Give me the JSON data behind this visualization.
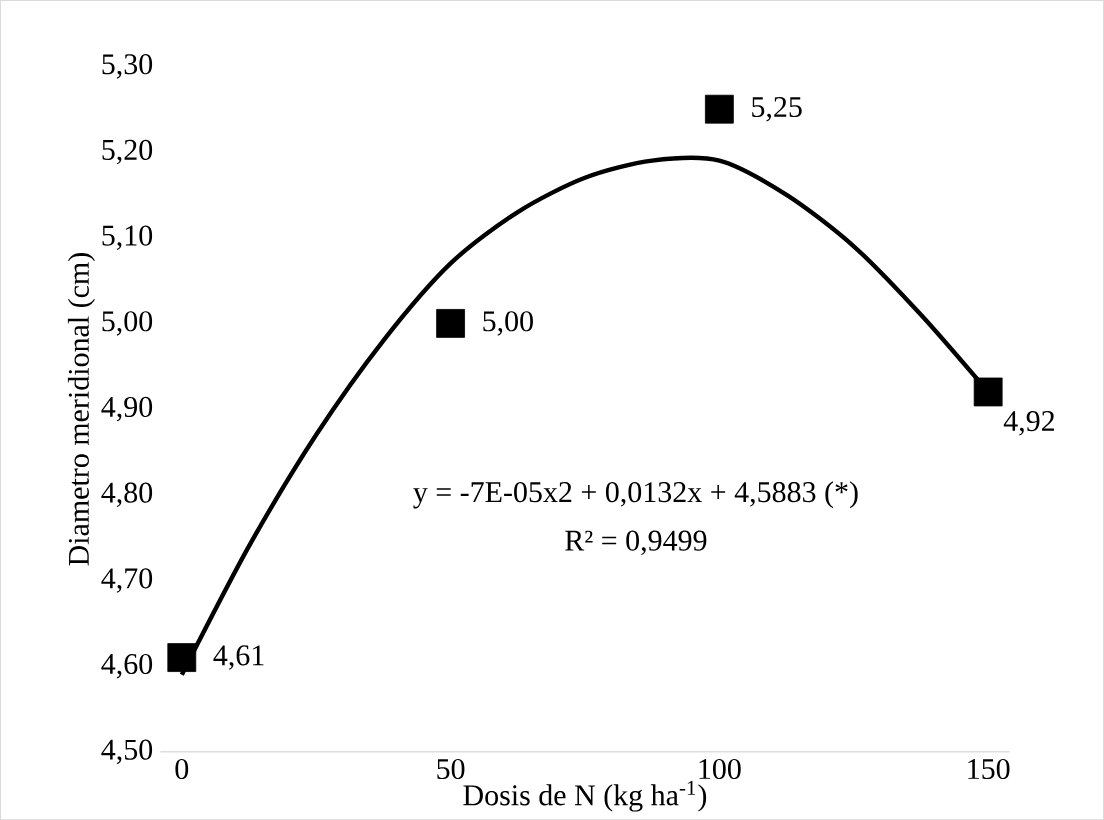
{
  "chart_data": {
    "type": "scatter",
    "xlabel": "Dosis de N (kg ha$^{-1}$)",
    "ylabel": "Diametro meridional (cm)",
    "x": [
      0,
      50,
      100,
      150
    ],
    "series": [
      {
        "color": "#000000",
        "marker": "square",
        "values": [
          4.61,
          5.0,
          5.25,
          4.92
        ],
        "value_labels": [
          "4,61",
          "5,00",
          "5,25",
          "4,92"
        ]
      },
      {
        "type": "line",
        "color": "#000000",
        "marker": "none",
        "line_style": "solid",
        "x": [
          0,
          12.5,
          25,
          37.5,
          50,
          62.5,
          75,
          87.5,
          100,
          112.5,
          125,
          137.5,
          150
        ],
        "values": [
          4.59,
          4.74,
          4.87,
          4.98,
          5.07,
          5.13,
          5.17,
          5.19,
          5.19,
          5.15,
          5.09,
          5.01,
          4.92
        ]
      }
    ],
    "xlim": [
      -4,
      154
    ],
    "xticks": [
      0,
      50,
      100,
      150
    ],
    "ylim": [
      4.5,
      5.3
    ],
    "yticks": [
      {
        "value": 4.5,
        "label": "4,50"
      },
      {
        "value": 4.6,
        "label": "4,60"
      },
      {
        "value": 4.7,
        "label": "4,70"
      },
      {
        "value": 4.8,
        "label": "4,80"
      },
      {
        "value": 4.9,
        "label": "4,90"
      },
      {
        "value": 5.0,
        "label": "5,00"
      },
      {
        "value": 5.1,
        "label": "5,10"
      },
      {
        "value": 5.2,
        "label": "5,20"
      },
      {
        "value": 5.3,
        "label": "5,30"
      }
    ],
    "annotations": [
      "y = -7E-05x2 + 0,0132x + 4,5883 (*)",
      "R² = 0,9499"
    ],
    "grid": false
  }
}
